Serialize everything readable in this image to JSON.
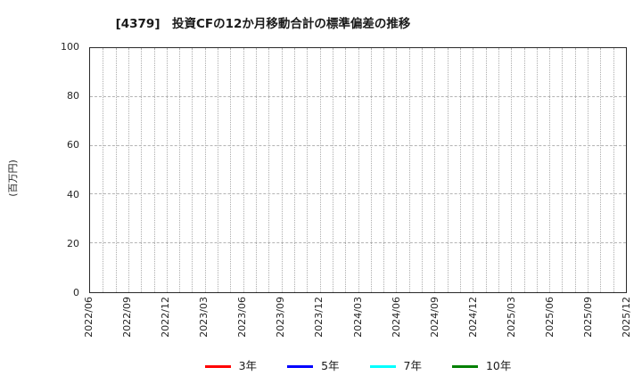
{
  "chart_data": {
    "type": "line",
    "title": "[4379]　投資CFの12か月移動合計の標準偏差の推移",
    "ylabel": "(百万円)",
    "xlabel": "",
    "ylim": [
      0,
      100
    ],
    "y_ticks": [
      0,
      20,
      40,
      60,
      80,
      100
    ],
    "x_tick_labels": [
      "2022/06",
      "2022/09",
      "2022/12",
      "2023/03",
      "2023/06",
      "2023/09",
      "2023/12",
      "2024/03",
      "2024/06",
      "2024/09",
      "2024/12",
      "2025/03",
      "2025/06",
      "2025/09",
      "2025/12"
    ],
    "x_total_months": 42,
    "x_label_step_months": 3,
    "grid": true,
    "legend_position": "bottom-center",
    "series": [
      {
        "name": "3年",
        "color": "#ff0000",
        "values": []
      },
      {
        "name": "5年",
        "color": "#0000ff",
        "values": []
      },
      {
        "name": "7年",
        "color": "#00ffff",
        "values": []
      },
      {
        "name": "10年",
        "color": "#008000",
        "values": []
      }
    ],
    "no_data_plotted": true
  }
}
